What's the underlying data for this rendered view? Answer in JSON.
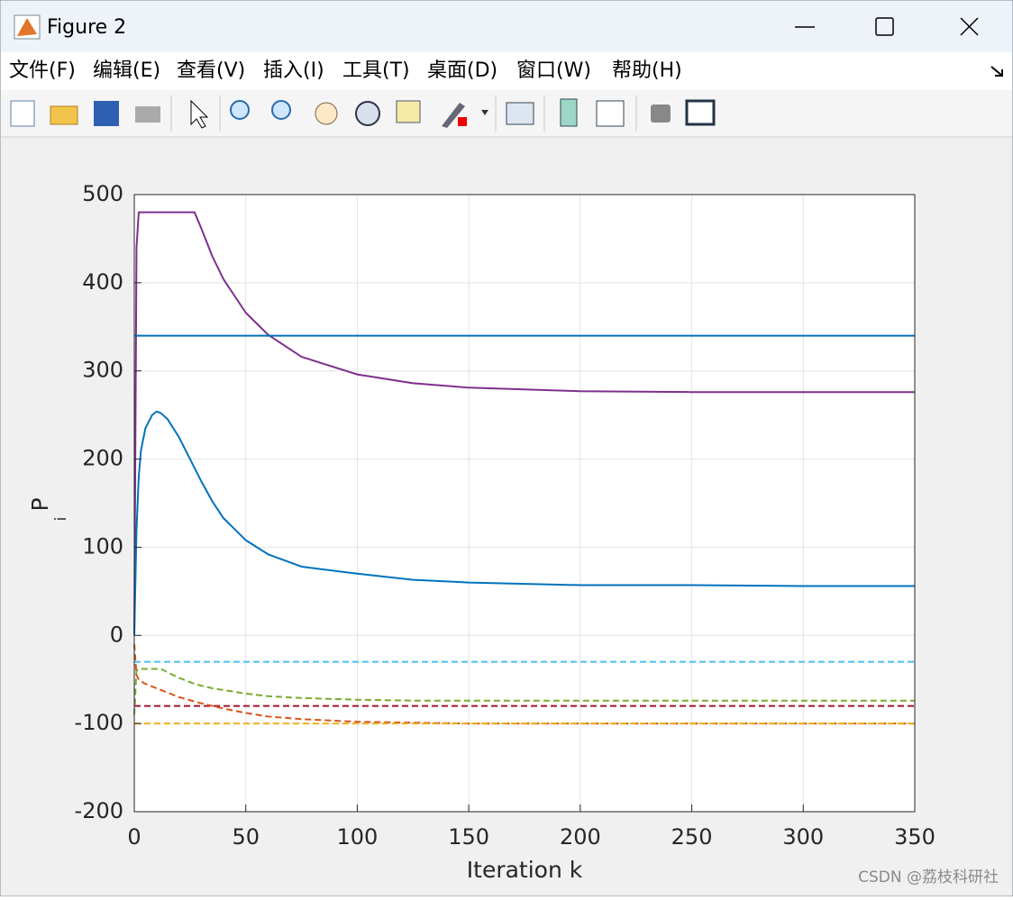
{
  "window": {
    "title": "Figure 2",
    "menu": [
      "文件(F)",
      "编辑(E)",
      "查看(V)",
      "插入(I)",
      "工具(T)",
      "桌面(D)",
      "窗口(W)",
      "帮助(H)"
    ],
    "watermark": "CSDN @荔枝科研社"
  },
  "chart_data": {
    "type": "line",
    "xlabel": "Iteration k",
    "ylabel": {
      "text": "P",
      "subscript": "i"
    },
    "x": [
      0,
      1,
      2,
      3,
      5,
      8,
      10,
      12,
      15,
      20,
      27,
      30,
      35,
      40,
      50,
      60,
      75,
      100,
      125,
      150,
      200,
      250,
      300,
      350
    ],
    "series": [
      {
        "color": "#7e2f8e",
        "dashed": false,
        "values": [
          0,
          440,
          480,
          480,
          480,
          480,
          480,
          480,
          480,
          480,
          480,
          462,
          430,
          404,
          366,
          341,
          316,
          296,
          286,
          281,
          277,
          276,
          276,
          276
        ]
      },
      {
        "color": "#0072bd",
        "dashed": false,
        "values": [
          340,
          340,
          340,
          340,
          340,
          340,
          340,
          340,
          340,
          340,
          340,
          340,
          340,
          340,
          340,
          340,
          340,
          340,
          340,
          340,
          340,
          340,
          340,
          340
        ]
      },
      {
        "color": "#0072bd",
        "dashed": false,
        "values": [
          0,
          120,
          180,
          210,
          235,
          250,
          254,
          252,
          245,
          225,
          190,
          175,
          152,
          133,
          108,
          92,
          78,
          70,
          63,
          60,
          57,
          57,
          56,
          56
        ]
      },
      {
        "color": "#4dbeee",
        "dashed": true,
        "values": [
          -30,
          -30,
          -30,
          -30,
          -30,
          -30,
          -30,
          -30,
          -30,
          -30,
          -30,
          -30,
          -30,
          -30,
          -30,
          -30,
          -30,
          -30,
          -30,
          -30,
          -30,
          -30,
          -30,
          -30
        ]
      },
      {
        "color": "#77ac30",
        "dashed": true,
        "values": [
          -90,
          -40,
          -38,
          -38,
          -38,
          -38,
          -38,
          -38,
          -42,
          -48,
          -55,
          -57,
          -60,
          -62,
          -66,
          -69,
          -71,
          -73,
          -74,
          -74,
          -74,
          -74,
          -74,
          -74
        ]
      },
      {
        "color": "#a2142f",
        "dashed": true,
        "values": [
          -80,
          -80,
          -80,
          -80,
          -80,
          -80,
          -80,
          -80,
          -80,
          -80,
          -80,
          -80,
          -80,
          -80,
          -80,
          -80,
          -80,
          -80,
          -80,
          -80,
          -80,
          -80,
          -80,
          -80
        ]
      },
      {
        "color": "#d95319",
        "dashed": true,
        "values": [
          -10,
          -45,
          -50,
          -52,
          -55,
          -58,
          -60,
          -62,
          -65,
          -70,
          -75,
          -77,
          -80,
          -83,
          -88,
          -92,
          -95,
          -98,
          -99,
          -100,
          -100,
          -100,
          -100,
          -100
        ]
      },
      {
        "color": "#edb120",
        "dashed": true,
        "values": [
          -100,
          -100,
          -100,
          -100,
          -100,
          -100,
          -100,
          -100,
          -100,
          -100,
          -100,
          -100,
          -100,
          -100,
          -100,
          -100,
          -100,
          -100,
          -100,
          -100,
          -100,
          -100,
          -100,
          -100
        ]
      }
    ],
    "xlim": [
      0,
      350
    ],
    "xticks": [
      0,
      50,
      100,
      150,
      200,
      250,
      300,
      350
    ],
    "ylim": [
      -200,
      500
    ],
    "yticks": [
      -200,
      -100,
      0,
      100,
      200,
      300,
      400,
      500
    ],
    "grid": true
  }
}
